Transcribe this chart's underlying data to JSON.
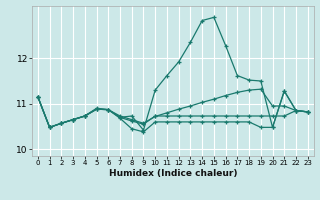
{
  "xlabel": "Humidex (Indice chaleur)",
  "bg_color": "#cce8e8",
  "grid_color": "#b8d8d8",
  "line_color": "#1a7a6e",
  "xlim_min": -0.5,
  "xlim_max": 23.5,
  "ylim_min": 9.85,
  "ylim_max": 13.15,
  "yticks": [
    10,
    11,
    12
  ],
  "xticks": [
    0,
    1,
    2,
    3,
    4,
    5,
    6,
    7,
    8,
    9,
    10,
    11,
    12,
    13,
    14,
    15,
    16,
    17,
    18,
    19,
    20,
    21,
    22,
    23
  ],
  "series1": [
    11.15,
    10.48,
    10.57,
    10.65,
    10.73,
    10.9,
    10.87,
    10.7,
    10.73,
    10.42,
    11.3,
    11.62,
    11.92,
    12.35,
    12.83,
    12.9,
    12.28,
    11.62,
    11.52,
    11.5,
    10.48,
    11.28,
    10.85,
    10.82
  ],
  "series2": [
    11.15,
    10.48,
    10.57,
    10.65,
    10.73,
    10.88,
    10.87,
    10.73,
    10.65,
    10.57,
    10.72,
    10.8,
    10.88,
    10.95,
    11.03,
    11.1,
    11.18,
    11.25,
    11.3,
    11.32,
    10.95,
    10.95,
    10.85,
    10.82
  ],
  "series3": [
    11.15,
    10.48,
    10.57,
    10.65,
    10.73,
    10.88,
    10.87,
    10.7,
    10.62,
    10.55,
    10.73,
    10.73,
    10.73,
    10.73,
    10.73,
    10.73,
    10.73,
    10.73,
    10.73,
    10.73,
    10.73,
    10.73,
    10.85,
    10.82
  ],
  "series4": [
    11.15,
    10.48,
    10.57,
    10.65,
    10.73,
    10.88,
    10.87,
    10.68,
    10.45,
    10.38,
    10.6,
    10.6,
    10.6,
    10.6,
    10.6,
    10.6,
    10.6,
    10.6,
    10.6,
    10.48,
    10.48,
    11.28,
    10.85,
    10.82
  ]
}
